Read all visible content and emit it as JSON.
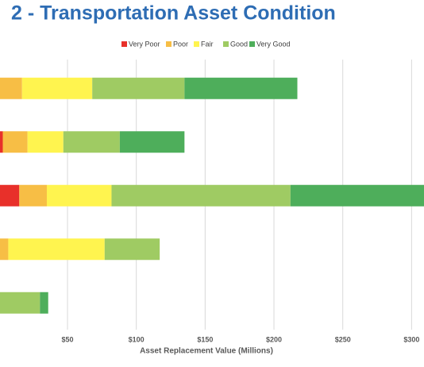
{
  "chart_data": {
    "type": "stacked-bar-horizontal",
    "title": "2 - Transportation Asset Condition",
    "x_label": "Asset Replacement Value (Millions)",
    "categories": [
      null,
      null,
      null,
      null,
      null
    ],
    "series": [
      {
        "name": "Very Poor",
        "color": "#e8302a",
        "values": [
          0,
          3,
          15,
          0,
          0
        ]
      },
      {
        "name": "Poor",
        "color": "#f7be45",
        "values": [
          17,
          18,
          20,
          7,
          0
        ]
      },
      {
        "name": "Fair",
        "color": "#fff44f",
        "values": [
          51,
          26,
          47,
          70,
          0
        ]
      },
      {
        "name": "Good",
        "color": "#9fcb63",
        "values": [
          67,
          41,
          130,
          40,
          30
        ]
      },
      {
        "name": "Very Good",
        "color": "#4eae5b",
        "values": [
          82,
          47,
          97,
          0,
          6
        ]
      }
    ],
    "xlim": [
      0,
      309
    ],
    "xticks": [
      {
        "value": 50,
        "label": "$50"
      },
      {
        "value": 100,
        "label": "$100"
      },
      {
        "value": 150,
        "label": "$150"
      },
      {
        "value": 200,
        "label": "$200"
      },
      {
        "value": 250,
        "label": "$250"
      },
      {
        "value": 300,
        "label": "$300"
      }
    ],
    "grid": true,
    "legend": "top"
  }
}
